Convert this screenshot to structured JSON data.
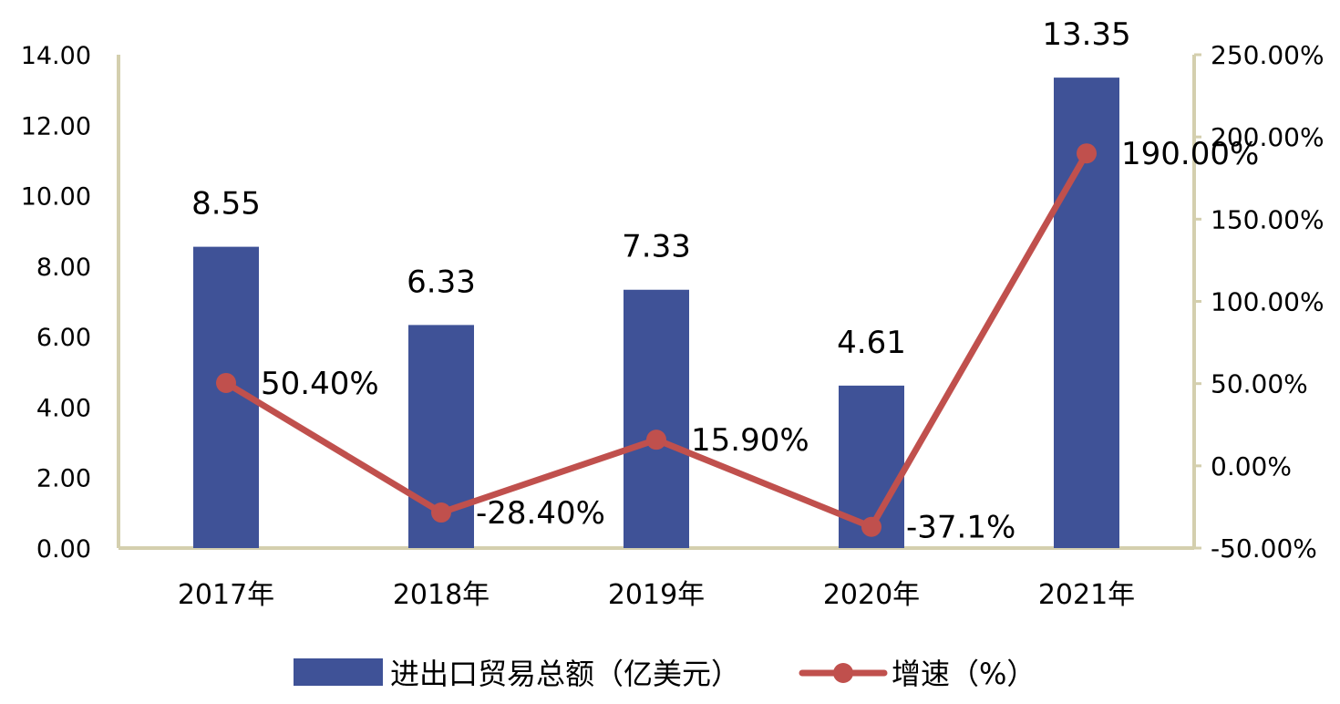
{
  "chart_data": {
    "type": "bar",
    "categories": [
      "2017年",
      "2018年",
      "2019年",
      "2020年",
      "2021年"
    ],
    "series": [
      {
        "name": "进出口贸易总额（亿美元）",
        "type": "bar",
        "axis": "left",
        "values": [
          8.55,
          6.33,
          7.33,
          4.61,
          13.35
        ],
        "labels": [
          "8.55",
          "6.33",
          "7.33",
          "4.61",
          "13.35"
        ],
        "color": "#3f5297"
      },
      {
        "name": "增速（%）",
        "type": "line",
        "axis": "right",
        "values": [
          50.4,
          -28.4,
          15.9,
          -37.1,
          190.0
        ],
        "labels": [
          "50.40%",
          "-28.40%",
          "15.90%",
          "-37.1%",
          "190.00%"
        ],
        "color": "#c0504d"
      }
    ],
    "y_left": {
      "min": 0,
      "max": 14,
      "ticks": [
        "0.00",
        "2.00",
        "4.00",
        "6.00",
        "8.00",
        "10.00",
        "12.00",
        "14.00"
      ]
    },
    "y_right": {
      "min": -50,
      "max": 250,
      "ticks": [
        "-50.00%",
        "0.00%",
        "50.00%",
        "100.00%",
        "150.00%",
        "200.00%",
        "250.00%"
      ]
    },
    "axis_color": "#d4cfae",
    "grid": false,
    "legend_position": "bottom"
  }
}
